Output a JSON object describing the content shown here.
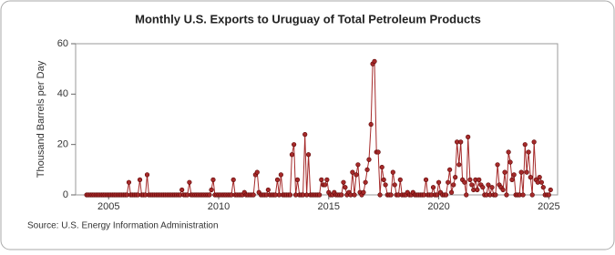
{
  "chart_data": {
    "type": "line",
    "title": "Monthly U.S. Exports to Uruguay of Total Petroleum Products",
    "y_label": "Thousand Barrels per Day",
    "source": "Source: U.S. Energy Information Administration",
    "color": "#a52a2a",
    "xlim": [
      2003.5,
      2025.4
    ],
    "xticks": [
      2005,
      2010,
      2015,
      2020,
      2025
    ],
    "ylim": [
      0,
      60
    ],
    "yticks": [
      0,
      20,
      40,
      60
    ],
    "x": [
      2004,
      2004.08,
      2004.17,
      2004.25,
      2004.33,
      2004.42,
      2004.5,
      2004.58,
      2004.67,
      2004.75,
      2004.83,
      2004.92,
      2005,
      2005.08,
      2005.17,
      2005.25,
      2005.33,
      2005.42,
      2005.5,
      2005.58,
      2005.67,
      2005.75,
      2005.83,
      2005.92,
      2006,
      2006.08,
      2006.17,
      2006.25,
      2006.33,
      2006.42,
      2006.5,
      2006.58,
      2006.67,
      2006.75,
      2006.83,
      2006.92,
      2007,
      2007.08,
      2007.17,
      2007.25,
      2007.33,
      2007.42,
      2007.5,
      2007.58,
      2007.67,
      2007.75,
      2007.83,
      2007.92,
      2008,
      2008.08,
      2008.17,
      2008.25,
      2008.33,
      2008.42,
      2008.5,
      2008.58,
      2008.67,
      2008.75,
      2008.83,
      2008.92,
      2009,
      2009.08,
      2009.17,
      2009.25,
      2009.33,
      2009.42,
      2009.5,
      2009.58,
      2009.67,
      2009.75,
      2009.83,
      2009.92,
      2010,
      2010.08,
      2010.17,
      2010.25,
      2010.33,
      2010.42,
      2010.5,
      2010.58,
      2010.67,
      2010.75,
      2010.83,
      2010.92,
      2011,
      2011.08,
      2011.17,
      2011.25,
      2011.33,
      2011.42,
      2011.5,
      2011.58,
      2011.67,
      2011.75,
      2011.83,
      2011.92,
      2012,
      2012.08,
      2012.17,
      2012.25,
      2012.33,
      2012.42,
      2012.5,
      2012.58,
      2012.67,
      2012.75,
      2012.83,
      2012.92,
      2013,
      2013.08,
      2013.17,
      2013.25,
      2013.33,
      2013.42,
      2013.5,
      2013.58,
      2013.67,
      2013.75,
      2013.83,
      2013.92,
      2014,
      2014.08,
      2014.17,
      2014.25,
      2014.33,
      2014.42,
      2014.5,
      2014.58,
      2014.67,
      2014.75,
      2014.83,
      2014.92,
      2015,
      2015.08,
      2015.17,
      2015.25,
      2015.33,
      2015.42,
      2015.5,
      2015.58,
      2015.67,
      2015.75,
      2015.83,
      2015.92,
      2016,
      2016.08,
      2016.17,
      2016.25,
      2016.33,
      2016.42,
      2016.5,
      2016.58,
      2016.67,
      2016.75,
      2016.83,
      2016.92,
      2017,
      2017.08,
      2017.17,
      2017.25,
      2017.33,
      2017.42,
      2017.5,
      2017.58,
      2017.67,
      2017.75,
      2017.83,
      2017.92,
      2018,
      2018.08,
      2018.17,
      2018.25,
      2018.33,
      2018.42,
      2018.5,
      2018.58,
      2018.67,
      2018.75,
      2018.83,
      2018.92,
      2019,
      2019.08,
      2019.17,
      2019.25,
      2019.33,
      2019.42,
      2019.5,
      2019.58,
      2019.67,
      2019.75,
      2019.83,
      2019.92,
      2020,
      2020.08,
      2020.17,
      2020.25,
      2020.33,
      2020.42,
      2020.5,
      2020.58,
      2020.67,
      2020.75,
      2020.83,
      2020.92,
      2021,
      2021.08,
      2021.17,
      2021.25,
      2021.33,
      2021.42,
      2021.5,
      2021.58,
      2021.67,
      2021.75,
      2021.83,
      2021.92,
      2022,
      2022.08,
      2022.17,
      2022.25,
      2022.33,
      2022.42,
      2022.5,
      2022.58,
      2022.67,
      2022.75,
      2022.83,
      2022.92,
      2023,
      2023.08,
      2023.17,
      2023.25,
      2023.33,
      2023.42,
      2023.5,
      2023.58,
      2023.67,
      2023.75,
      2023.83,
      2023.92,
      2024,
      2024.08,
      2024.17,
      2024.25,
      2024.33,
      2024.42,
      2024.5,
      2024.58,
      2024.67,
      2024.75,
      2024.83,
      2024.92,
      2025,
      2025.08
    ],
    "values": [
      0,
      0,
      0,
      0,
      0,
      0,
      0,
      0,
      0,
      0,
      0,
      0,
      0,
      0,
      0,
      0,
      0,
      0,
      0,
      0,
      0,
      0,
      0,
      5,
      0,
      0,
      0,
      0,
      0,
      6,
      0,
      0,
      0,
      8,
      0,
      0,
      0,
      0,
      0,
      0,
      0,
      0,
      0,
      0,
      0,
      0,
      0,
      0,
      0,
      0,
      0,
      0,
      2,
      0,
      0,
      0,
      5,
      0,
      0,
      0,
      0,
      0,
      0,
      0,
      0,
      0,
      0,
      0,
      2,
      6,
      0,
      0,
      0,
      0,
      0,
      0,
      0,
      0,
      0,
      0,
      6,
      0,
      0,
      0,
      0,
      0,
      1,
      0,
      0,
      0,
      0,
      0,
      8,
      9,
      1,
      0,
      0,
      0,
      0,
      2,
      0,
      0,
      0,
      0,
      6,
      0,
      8,
      0,
      0,
      0,
      0,
      0,
      16,
      20,
      0,
      6,
      0,
      0,
      0,
      24,
      0,
      16,
      0,
      0,
      0,
      0,
      0,
      0,
      6,
      4,
      4,
      6,
      1,
      0,
      0,
      1,
      0,
      0,
      0,
      0,
      5,
      3,
      0,
      1,
      0,
      9,
      0,
      8,
      12,
      1,
      0,
      1,
      5,
      10,
      14,
      28,
      52,
      53,
      17,
      17,
      0,
      11,
      6,
      4,
      0,
      0,
      0,
      9,
      4,
      0,
      0,
      6,
      0,
      0,
      0,
      1,
      0,
      0,
      1,
      0,
      0,
      0,
      0,
      0,
      0,
      6,
      0,
      0,
      0,
      3,
      0,
      0,
      5,
      1,
      0,
      0,
      0,
      5,
      10,
      1,
      4,
      7,
      21,
      12,
      21,
      6,
      5,
      0,
      23,
      6,
      4,
      2,
      6,
      2,
      6,
      4,
      3,
      0,
      0,
      4,
      0,
      3,
      0,
      0,
      12,
      4,
      3,
      2,
      9,
      0,
      17,
      13,
      6,
      8,
      0,
      0,
      0,
      9,
      0,
      20,
      9,
      17,
      7,
      0,
      21,
      6,
      5,
      7,
      5,
      3,
      0,
      0,
      0,
      2
    ]
  }
}
